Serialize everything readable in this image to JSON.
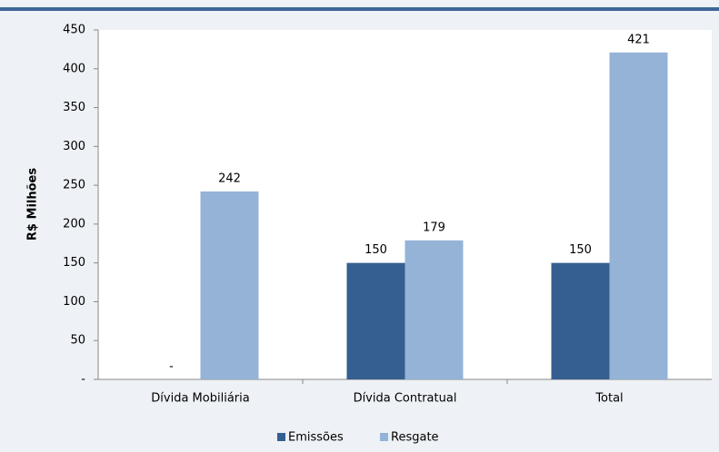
{
  "chart_data": {
    "type": "bar",
    "y_label": "R$ Milhões",
    "categories": [
      "Dívida Mobiliária",
      "Dívida Contratual",
      "Total"
    ],
    "series": [
      {
        "name": "Emissões",
        "color": "#355f91",
        "values": [
          0,
          150,
          150
        ],
        "value_labels": [
          "-",
          "150",
          "150"
        ]
      },
      {
        "name": "Resgate",
        "color": "#95b3d7",
        "values": [
          242,
          179,
          421
        ]
      }
    ],
    "ylim": [
      0,
      450
    ],
    "yticks": [
      {
        "value": 0,
        "label": "-"
      },
      50,
      100,
      150,
      200,
      250,
      300,
      350,
      400,
      450
    ],
    "grid": false,
    "legend": "bottom"
  }
}
